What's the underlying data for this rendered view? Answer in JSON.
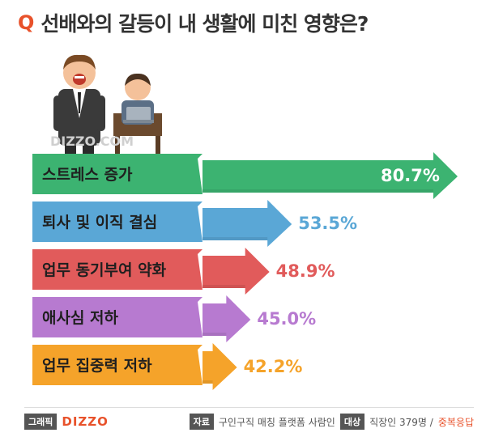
{
  "header": {
    "q_mark": "Q",
    "question": "선배와의 갈등이 내 생활에 미친 영향은?"
  },
  "watermark": "DIZZO.COM",
  "chart_data": {
    "type": "bar",
    "orientation": "horizontal",
    "categories": [
      "스트레스 증가",
      "퇴사 및 이직 결심",
      "업무 동기부여 약화",
      "애사심 저하",
      "업무 집중력 저하"
    ],
    "values": [
      80.7,
      53.5,
      48.9,
      45.0,
      42.2
    ],
    "value_labels": [
      "80.7%",
      "53.5%",
      "48.9%",
      "45.0%",
      "42.2%"
    ],
    "colors": [
      "#3cb371",
      "#5aa7d6",
      "#e15b5b",
      "#b77ad0",
      "#f5a32a"
    ],
    "label_colors": [
      "#3cb371",
      "#5aa7d6",
      "#e15b5b",
      "#b77ad0",
      "#f5a32a"
    ],
    "unit": "%"
  },
  "footer": {
    "graphic_tag": "그래픽",
    "brand": "DIZZO",
    "source_tag": "자료",
    "source_text": "구인구직 매칭 플랫폼 사람인",
    "target_tag": "대상",
    "target_text": "직장인 379명 /",
    "multi_text": "중복응답"
  }
}
